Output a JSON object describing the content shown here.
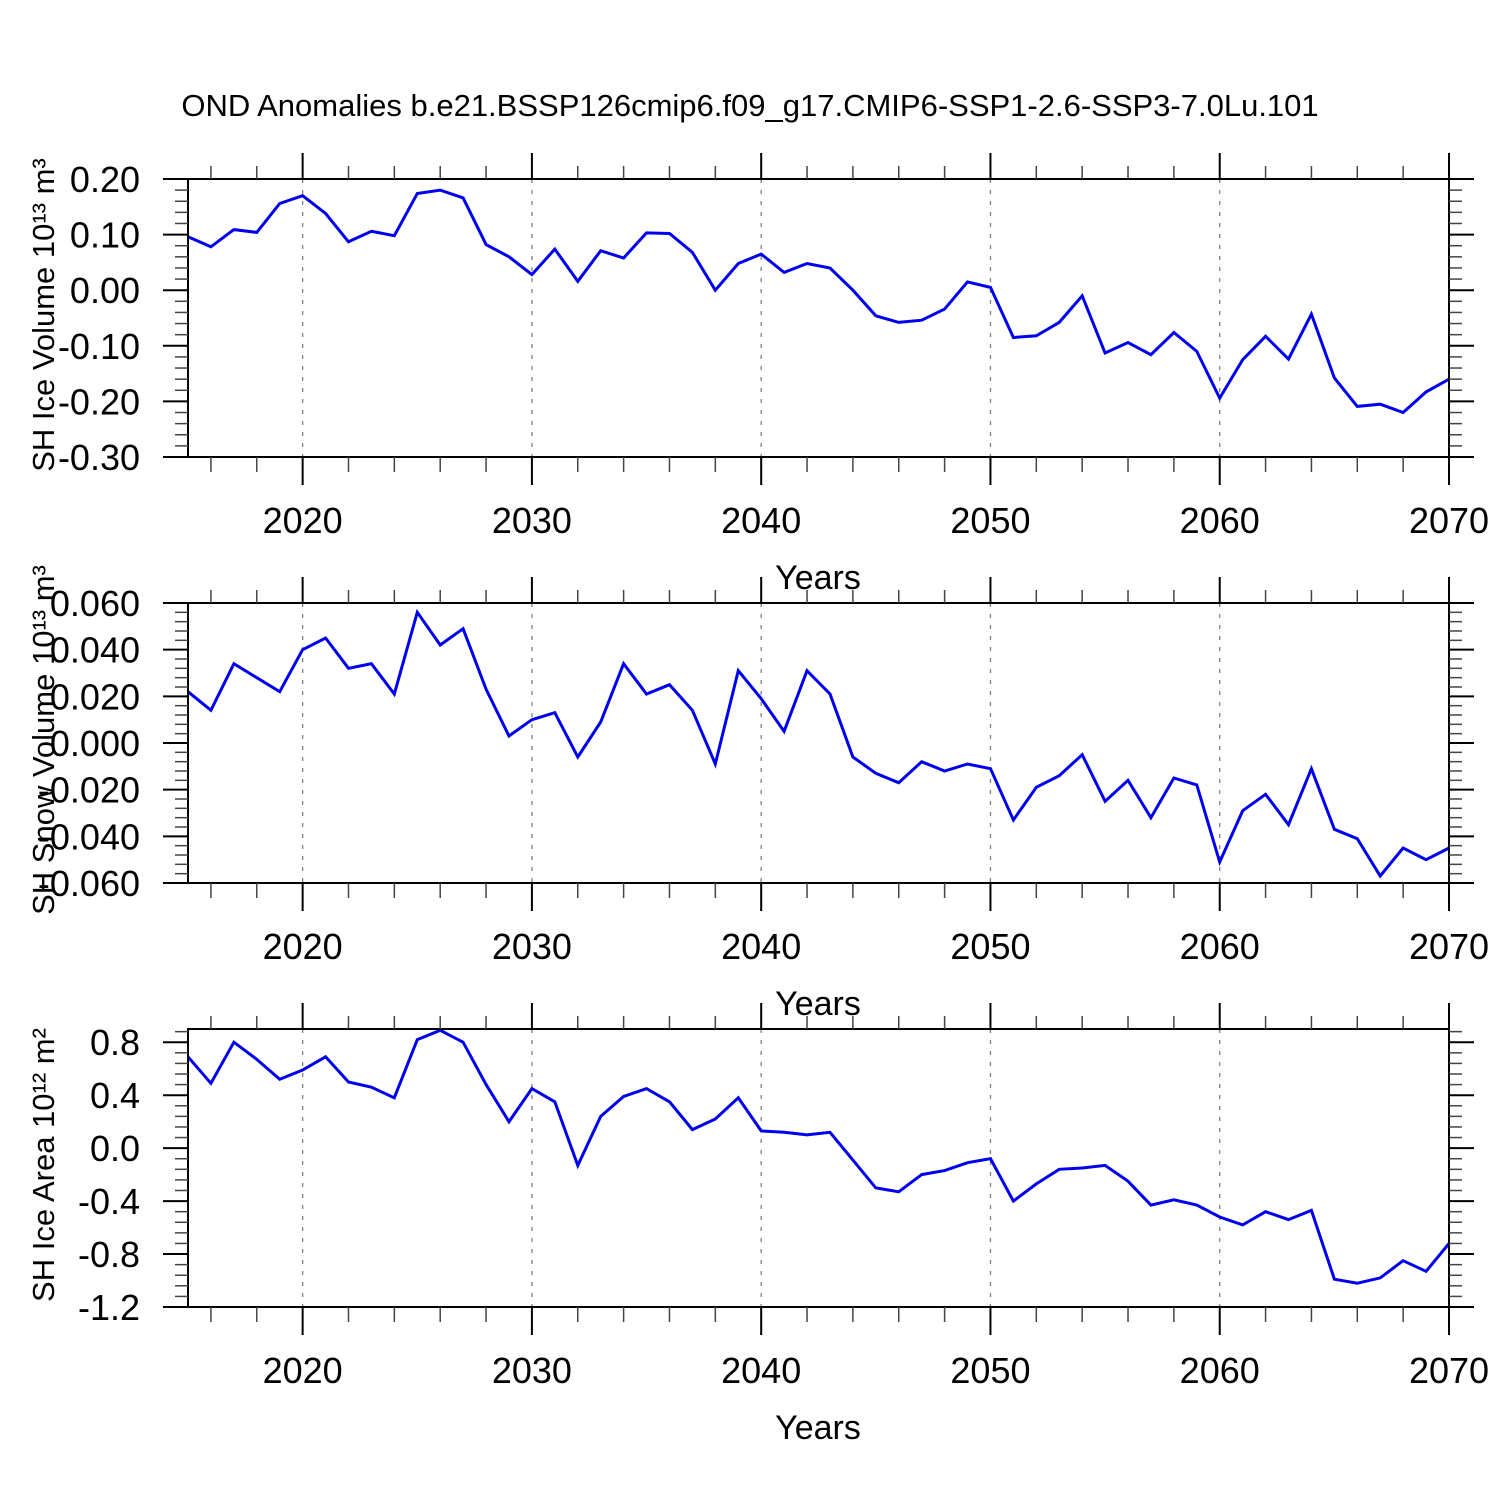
{
  "title": "OND Anomalies b.e21.BSSP126cmip6.f09_g17.CMIP6-SSP1-2.6-SSP3-7.0Lu.101",
  "x_axis": {
    "label": "Years",
    "range": [
      2015,
      2070
    ],
    "major_ticks": [
      2020,
      2030,
      2040,
      2050,
      2060,
      2070
    ],
    "major_labels": [
      "2020",
      "2030",
      "2040",
      "2050",
      "2060",
      "2070"
    ],
    "minor_step": 2,
    "gridlines": [
      2020,
      2030,
      2040,
      2050,
      2060
    ]
  },
  "style": {
    "line_color": "#0000EE",
    "axis_color": "#000000",
    "minor_tick_color": "#444444",
    "grid_color": "#808080",
    "background": "#ffffff"
  },
  "chart_data": [
    {
      "type": "line",
      "name": "sh-ice-volume",
      "ylabel": "SH Ice Volume 10¹³ m³",
      "ylim": [
        -0.3,
        0.2
      ],
      "y_ticks": {
        "values": [
          0.2,
          0.1,
          0.0,
          -0.1,
          -0.2,
          -0.3
        ],
        "labels": [
          "0.20",
          "0.10",
          "0.00",
          "-0.10",
          "-0.20",
          "-0.30"
        ]
      },
      "y_minor_step": 0.02,
      "x_start": 2015,
      "x_end": 2070,
      "values": [
        0.096,
        0.078,
        0.109,
        0.104,
        0.156,
        0.17,
        0.138,
        0.087,
        0.106,
        0.098,
        0.174,
        0.18,
        0.166,
        0.082,
        0.06,
        0.028,
        0.074,
        0.016,
        0.071,
        0.058,
        0.103,
        0.102,
        0.068,
        0.0,
        0.048,
        0.065,
        0.032,
        0.048,
        0.04,
        0.0,
        -0.046,
        -0.058,
        -0.054,
        -0.034,
        0.015,
        0.005,
        -0.085,
        -0.082,
        -0.058,
        -0.01,
        -0.113,
        -0.094,
        -0.116,
        -0.076,
        -0.11,
        -0.194,
        -0.125,
        -0.083,
        -0.124,
        -0.043,
        -0.158,
        -0.209,
        -0.205,
        -0.22,
        -0.183,
        -0.16
      ]
    },
    {
      "type": "line",
      "name": "sh-snow-volume",
      "ylabel": "SH Snow Volume 10¹³ m³",
      "ylim": [
        -0.06,
        0.06
      ],
      "y_ticks": {
        "values": [
          0.06,
          0.04,
          0.02,
          0.0,
          -0.02,
          -0.04,
          -0.06
        ],
        "labels": [
          "0.060",
          "0.040",
          "0.020",
          "0.000",
          "-0.020",
          "-0.040",
          "-0.060"
        ]
      },
      "y_minor_step": 0.004,
      "x_start": 2015,
      "x_end": 2070,
      "values": [
        0.022,
        0.014,
        0.034,
        0.028,
        0.022,
        0.04,
        0.045,
        0.032,
        0.034,
        0.021,
        0.056,
        0.042,
        0.049,
        0.023,
        0.003,
        0.01,
        0.013,
        -0.006,
        0.009,
        0.034,
        0.021,
        0.025,
        0.014,
        -0.009,
        0.031,
        0.019,
        0.005,
        0.031,
        0.021,
        -0.006,
        -0.013,
        -0.017,
        -0.008,
        -0.012,
        -0.009,
        -0.011,
        -0.033,
        -0.019,
        -0.014,
        -0.005,
        -0.025,
        -0.016,
        -0.032,
        -0.015,
        -0.018,
        -0.051,
        -0.029,
        -0.022,
        -0.035,
        -0.011,
        -0.037,
        -0.041,
        -0.057,
        -0.045,
        -0.05,
        -0.045
      ]
    },
    {
      "type": "line",
      "name": "sh-ice-area",
      "ylabel": "SH Ice Area 10¹² m²",
      "ylim": [
        -1.2,
        0.9
      ],
      "y_ticks": {
        "values": [
          0.8,
          0.4,
          0.0,
          -0.4,
          -0.8,
          -1.2
        ],
        "labels": [
          "0.8",
          "0.4",
          "0.0",
          "-0.4",
          "-0.8",
          "-1.2"
        ]
      },
      "y_minor_step": 0.08,
      "x_start": 2015,
      "x_end": 2070,
      "values": [
        0.69,
        0.49,
        0.8,
        0.67,
        0.52,
        0.59,
        0.69,
        0.5,
        0.46,
        0.38,
        0.82,
        0.89,
        0.8,
        0.48,
        0.2,
        0.45,
        0.35,
        -0.13,
        0.24,
        0.39,
        0.45,
        0.35,
        0.14,
        0.22,
        0.38,
        0.13,
        0.12,
        0.1,
        0.12,
        -0.09,
        -0.3,
        -0.33,
        -0.2,
        -0.17,
        -0.11,
        -0.08,
        -0.4,
        -0.27,
        -0.16,
        -0.15,
        -0.13,
        -0.25,
        -0.43,
        -0.39,
        -0.43,
        -0.52,
        -0.58,
        -0.48,
        -0.54,
        -0.47,
        -0.99,
        -1.02,
        -0.98,
        -0.85,
        -0.93,
        -0.72
      ]
    }
  ]
}
